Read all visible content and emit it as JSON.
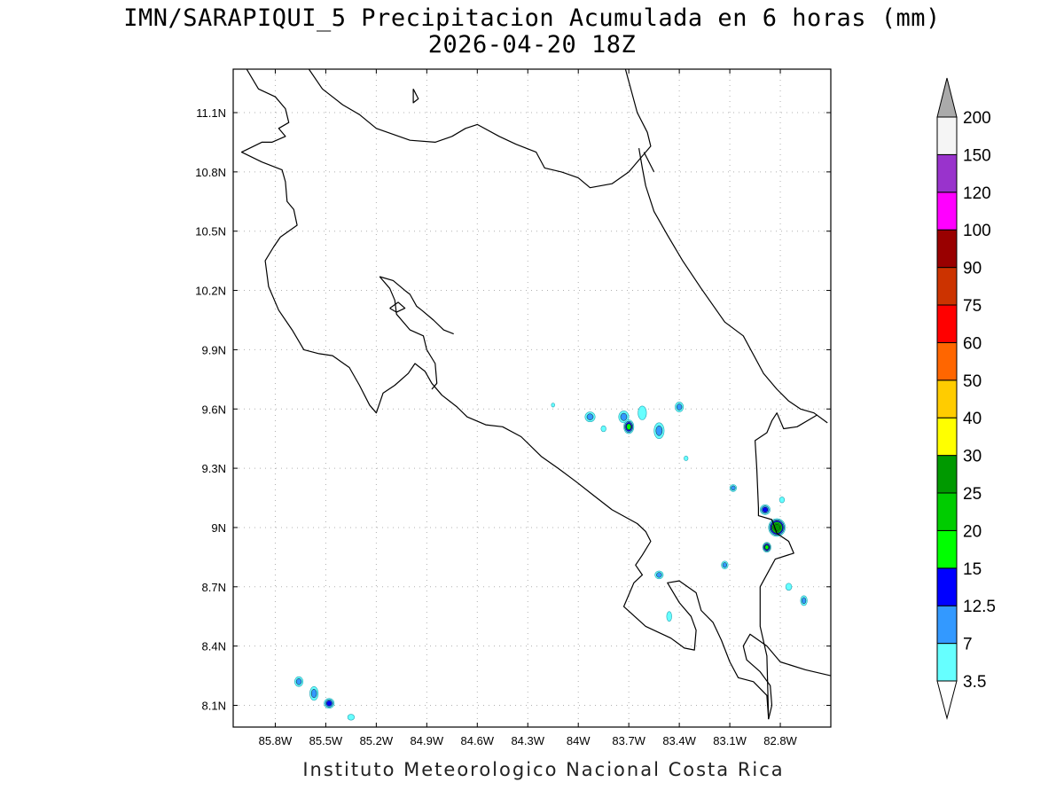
{
  "title": {
    "line1": "IMN/SARAPIQUI_5 Precipitacion Acumulada en 6 horas (mm)",
    "line2": "2026-04-20 18Z"
  },
  "footer": "Instituto Meteorologico Nacional Costa Rica",
  "map": {
    "lon_range": [
      -86.05,
      -82.5
    ],
    "lat_range": [
      7.99,
      11.32
    ],
    "x_ticks": [
      {
        "lon": -85.8,
        "label": "85.8W"
      },
      {
        "lon": -85.5,
        "label": "85.5W"
      },
      {
        "lon": -85.2,
        "label": "85.2W"
      },
      {
        "lon": -84.9,
        "label": "84.9W"
      },
      {
        "lon": -84.6,
        "label": "84.6W"
      },
      {
        "lon": -84.3,
        "label": "84.3W"
      },
      {
        "lon": -84.0,
        "label": "84W"
      },
      {
        "lon": -83.7,
        "label": "83.7W"
      },
      {
        "lon": -83.4,
        "label": "83.4W"
      },
      {
        "lon": -83.1,
        "label": "83.1W"
      },
      {
        "lon": -82.8,
        "label": "82.8W"
      }
    ],
    "y_ticks": [
      {
        "lat": 11.1,
        "label": "11.1N"
      },
      {
        "lat": 10.8,
        "label": "10.8N"
      },
      {
        "lat": 10.5,
        "label": "10.5N"
      },
      {
        "lat": 10.2,
        "label": "10.2N"
      },
      {
        "lat": 9.9,
        "label": "9.9N"
      },
      {
        "lat": 9.6,
        "label": "9.6N"
      },
      {
        "lat": 9.3,
        "label": "9.3N"
      },
      {
        "lat": 9.0,
        "label": "9N"
      },
      {
        "lat": 8.7,
        "label": "8.7N"
      },
      {
        "lat": 8.4,
        "label": "8.4N"
      },
      {
        "lat": 8.1,
        "label": "8.1N"
      }
    ],
    "grid": true,
    "coastlines": [
      [
        [
          -85.97,
          11.32
        ],
        [
          -85.9,
          11.22
        ],
        [
          -85.8,
          11.18
        ],
        [
          -85.74,
          11.12
        ],
        [
          -85.72,
          11.05
        ],
        [
          -85.78,
          11.02
        ],
        [
          -85.74,
          10.98
        ],
        [
          -85.82,
          10.95
        ],
        [
          -85.88,
          10.95
        ],
        [
          -86.0,
          10.9
        ],
        [
          -85.88,
          10.85
        ],
        [
          -85.76,
          10.81
        ],
        [
          -85.74,
          10.75
        ],
        [
          -85.73,
          10.65
        ],
        [
          -85.69,
          10.61
        ],
        [
          -85.67,
          10.53
        ],
        [
          -85.77,
          10.47
        ],
        [
          -85.81,
          10.42
        ],
        [
          -85.86,
          10.35
        ],
        [
          -85.84,
          10.22
        ],
        [
          -85.78,
          10.1
        ],
        [
          -85.7,
          10.0
        ],
        [
          -85.63,
          9.9
        ],
        [
          -85.54,
          9.88
        ],
        [
          -85.46,
          9.87
        ],
        [
          -85.36,
          9.81
        ],
        [
          -85.3,
          9.72
        ],
        [
          -85.24,
          9.62
        ],
        [
          -85.2,
          9.58
        ],
        [
          -85.16,
          9.68
        ],
        [
          -85.09,
          9.72
        ],
        [
          -85.01,
          9.78
        ],
        [
          -84.97,
          9.83
        ],
        [
          -84.91,
          9.79
        ],
        [
          -84.87,
          9.73
        ],
        [
          -84.81,
          9.67
        ],
        [
          -84.72,
          9.61
        ],
        [
          -84.66,
          9.56
        ],
        [
          -84.55,
          9.52
        ],
        [
          -84.45,
          9.51
        ],
        [
          -84.34,
          9.46
        ],
        [
          -84.22,
          9.36
        ],
        [
          -84.12,
          9.3
        ],
        [
          -84.01,
          9.23
        ],
        [
          -83.92,
          9.17
        ],
        [
          -83.8,
          9.09
        ],
        [
          -83.65,
          9.02
        ],
        [
          -83.6,
          8.98
        ],
        [
          -83.57,
          8.93
        ],
        [
          -83.62,
          8.86
        ],
        [
          -83.66,
          8.81
        ],
        [
          -83.62,
          8.76
        ],
        [
          -83.67,
          8.72
        ],
        [
          -83.73,
          8.6
        ],
        [
          -83.6,
          8.5
        ],
        [
          -83.45,
          8.44
        ],
        [
          -83.37,
          8.39
        ],
        [
          -83.31,
          8.38
        ],
        [
          -83.3,
          8.48
        ],
        [
          -83.33,
          8.55
        ],
        [
          -83.4,
          8.62
        ],
        [
          -83.47,
          8.72
        ],
        [
          -83.4,
          8.73
        ],
        [
          -83.3,
          8.67
        ],
        [
          -83.27,
          8.58
        ],
        [
          -83.2,
          8.52
        ],
        [
          -83.15,
          8.43
        ],
        [
          -83.1,
          8.32
        ],
        [
          -83.05,
          8.24
        ],
        [
          -82.96,
          8.22
        ],
        [
          -82.88,
          8.15
        ],
        [
          -82.87,
          8.03
        ]
      ],
      [
        [
          -82.87,
          8.03
        ],
        [
          -82.85,
          8.1
        ],
        [
          -82.86,
          8.2
        ],
        [
          -82.92,
          8.27
        ],
        [
          -83.0,
          8.33
        ],
        [
          -83.02,
          8.4
        ],
        [
          -82.98,
          8.46
        ],
        [
          -82.88,
          8.4
        ],
        [
          -82.8,
          8.32
        ],
        [
          -82.65,
          8.28
        ],
        [
          -82.5,
          8.25
        ]
      ],
      [
        [
          -85.6,
          11.32
        ],
        [
          -85.52,
          11.22
        ],
        [
          -85.4,
          11.14
        ],
        [
          -85.3,
          11.09
        ],
        [
          -85.2,
          11.02
        ],
        [
          -85.0,
          10.96
        ],
        [
          -84.85,
          10.95
        ],
        [
          -84.75,
          10.98
        ],
        [
          -84.67,
          11.02
        ],
        [
          -84.6,
          11.04
        ],
        [
          -84.47,
          10.98
        ],
        [
          -84.37,
          10.94
        ],
        [
          -84.25,
          10.9
        ],
        [
          -84.2,
          10.82
        ],
        [
          -84.1,
          10.8
        ],
        [
          -84.0,
          10.77
        ],
        [
          -83.93,
          10.72
        ],
        [
          -83.8,
          10.74
        ],
        [
          -83.7,
          10.8
        ],
        [
          -83.62,
          10.88
        ],
        [
          -83.57,
          10.93
        ],
        [
          -83.59,
          11.0
        ],
        [
          -83.65,
          11.1
        ],
        [
          -83.72,
          11.32
        ]
      ],
      [
        [
          -83.64,
          10.92
        ],
        [
          -83.62,
          10.82
        ],
        [
          -83.6,
          10.73
        ],
        [
          -83.55,
          10.6
        ],
        [
          -83.47,
          10.48
        ],
        [
          -83.38,
          10.35
        ],
        [
          -83.27,
          10.21
        ],
        [
          -83.13,
          10.04
        ],
        [
          -83.02,
          9.97
        ],
        [
          -82.9,
          9.78
        ],
        [
          -82.82,
          9.7
        ],
        [
          -82.75,
          9.64
        ],
        [
          -82.68,
          9.6
        ],
        [
          -82.6,
          9.58
        ],
        [
          -82.52,
          9.53
        ]
      ],
      [
        [
          -82.58,
          9.57
        ],
        [
          -82.62,
          9.55
        ],
        [
          -82.7,
          9.51
        ],
        [
          -82.78,
          9.5
        ],
        [
          -82.82,
          9.58
        ],
        [
          -82.85,
          9.54
        ],
        [
          -82.88,
          9.48
        ],
        [
          -82.95,
          9.44
        ],
        [
          -82.94,
          9.3
        ],
        [
          -82.93,
          9.1
        ],
        [
          -82.93,
          9.06
        ],
        [
          -82.85,
          9.04
        ],
        [
          -82.82,
          8.97
        ],
        [
          -82.75,
          8.93
        ],
        [
          -82.72,
          8.87
        ],
        [
          -82.83,
          8.84
        ],
        [
          -82.92,
          8.7
        ],
        [
          -82.92,
          8.5
        ],
        [
          -82.88,
          8.35
        ],
        [
          -82.87,
          8.03
        ]
      ],
      [
        [
          -85.18,
          10.27
        ],
        [
          -85.12,
          10.21
        ],
        [
          -85.09,
          10.15
        ],
        [
          -85.08,
          10.08
        ],
        [
          -85.0,
          10.0
        ],
        [
          -84.92,
          9.97
        ],
        [
          -84.9,
          9.9
        ],
        [
          -84.85,
          9.83
        ],
        [
          -84.84,
          9.73
        ],
        [
          -84.87,
          9.7
        ]
      ],
      [
        [
          -85.03,
          10.2
        ],
        [
          -85.0,
          10.18
        ],
        [
          -84.96,
          10.12
        ],
        [
          -84.93,
          10.1
        ],
        [
          -84.86,
          10.05
        ],
        [
          -84.8,
          10.0
        ],
        [
          -84.74,
          9.98
        ]
      ],
      [
        [
          -85.18,
          10.27
        ],
        [
          -85.1,
          10.25
        ],
        [
          -85.03,
          10.2
        ]
      ],
      [
        [
          -85.12,
          10.11
        ],
        [
          -85.07,
          10.14
        ],
        [
          -85.03,
          10.11
        ],
        [
          -85.08,
          10.09
        ],
        [
          -85.12,
          10.11
        ]
      ],
      [
        [
          -84.98,
          11.22
        ],
        [
          -84.95,
          11.17
        ],
        [
          -84.98,
          11.15
        ],
        [
          -84.98,
          11.22
        ]
      ],
      [
        [
          -83.61,
          10.9
        ],
        [
          -83.55,
          10.8
        ]
      ]
    ],
    "precip_cells": [
      {
        "lon": -84.15,
        "lat": 9.62,
        "rx": 0.01,
        "ry": 0.01,
        "max": 3.5
      },
      {
        "lon": -83.93,
        "lat": 9.56,
        "rx": 0.03,
        "ry": 0.025,
        "max": 7
      },
      {
        "lon": -83.85,
        "lat": 9.5,
        "rx": 0.015,
        "ry": 0.015,
        "max": 3.5
      },
      {
        "lon": -83.73,
        "lat": 9.56,
        "rx": 0.03,
        "ry": 0.03,
        "max": 7
      },
      {
        "lon": -83.7,
        "lat": 9.51,
        "rx": 0.03,
        "ry": 0.035,
        "max": 15
      },
      {
        "lon": -83.62,
        "lat": 9.58,
        "rx": 0.025,
        "ry": 0.035,
        "max": 3.5
      },
      {
        "lon": -83.52,
        "lat": 9.49,
        "rx": 0.03,
        "ry": 0.04,
        "max": 7
      },
      {
        "lon": -83.4,
        "lat": 9.61,
        "rx": 0.025,
        "ry": 0.025,
        "max": 7
      },
      {
        "lon": -83.36,
        "lat": 9.35,
        "rx": 0.012,
        "ry": 0.012,
        "max": 3.5
      },
      {
        "lon": -83.08,
        "lat": 9.2,
        "rx": 0.02,
        "ry": 0.018,
        "max": 7
      },
      {
        "lon": -82.89,
        "lat": 9.09,
        "rx": 0.03,
        "ry": 0.025,
        "max": 12.5
      },
      {
        "lon": -82.79,
        "lat": 9.14,
        "rx": 0.015,
        "ry": 0.015,
        "max": 3.5
      },
      {
        "lon": -82.82,
        "lat": 9.0,
        "rx": 0.05,
        "ry": 0.045,
        "max": 25
      },
      {
        "lon": -82.88,
        "lat": 8.9,
        "rx": 0.025,
        "ry": 0.025,
        "max": 15
      },
      {
        "lon": -82.75,
        "lat": 8.7,
        "rx": 0.018,
        "ry": 0.018,
        "max": 3.5
      },
      {
        "lon": -82.66,
        "lat": 8.63,
        "rx": 0.02,
        "ry": 0.025,
        "max": 7
      },
      {
        "lon": -83.13,
        "lat": 8.81,
        "rx": 0.02,
        "ry": 0.02,
        "max": 7
      },
      {
        "lon": -83.52,
        "lat": 8.76,
        "rx": 0.025,
        "ry": 0.02,
        "max": 7
      },
      {
        "lon": -83.46,
        "lat": 8.55,
        "rx": 0.015,
        "ry": 0.025,
        "max": 3.5
      },
      {
        "lon": -85.66,
        "lat": 8.22,
        "rx": 0.025,
        "ry": 0.025,
        "max": 7
      },
      {
        "lon": -85.57,
        "lat": 8.16,
        "rx": 0.025,
        "ry": 0.035,
        "max": 7
      },
      {
        "lon": -85.48,
        "lat": 8.11,
        "rx": 0.03,
        "ry": 0.025,
        "max": 12.5
      },
      {
        "lon": -85.35,
        "lat": 8.04,
        "rx": 0.02,
        "ry": 0.015,
        "max": 3.5
      }
    ]
  },
  "colorbar": {
    "levels": [
      {
        "label": "3.5",
        "color": "#66ffff"
      },
      {
        "label": "7",
        "color": "#3399ff"
      },
      {
        "label": "12.5",
        "color": "#0000ff"
      },
      {
        "label": "15",
        "color": "#00ff00"
      },
      {
        "label": "20",
        "color": "#00cc00"
      },
      {
        "label": "25",
        "color": "#009900"
      },
      {
        "label": "30",
        "color": "#ffff00"
      },
      {
        "label": "40",
        "color": "#ffcc00"
      },
      {
        "label": "50",
        "color": "#ff6600"
      },
      {
        "label": "60",
        "color": "#ff0000"
      },
      {
        "label": "75",
        "color": "#cc3300"
      },
      {
        "label": "90",
        "color": "#990000"
      },
      {
        "label": "100",
        "color": "#ff00ff"
      },
      {
        "label": "120",
        "color": "#9933cc"
      },
      {
        "label": "150",
        "color": "#f5f5f5"
      },
      {
        "label": "200",
        "color": "#aaaaaa"
      }
    ],
    "bottom_color": "#ffffff"
  }
}
